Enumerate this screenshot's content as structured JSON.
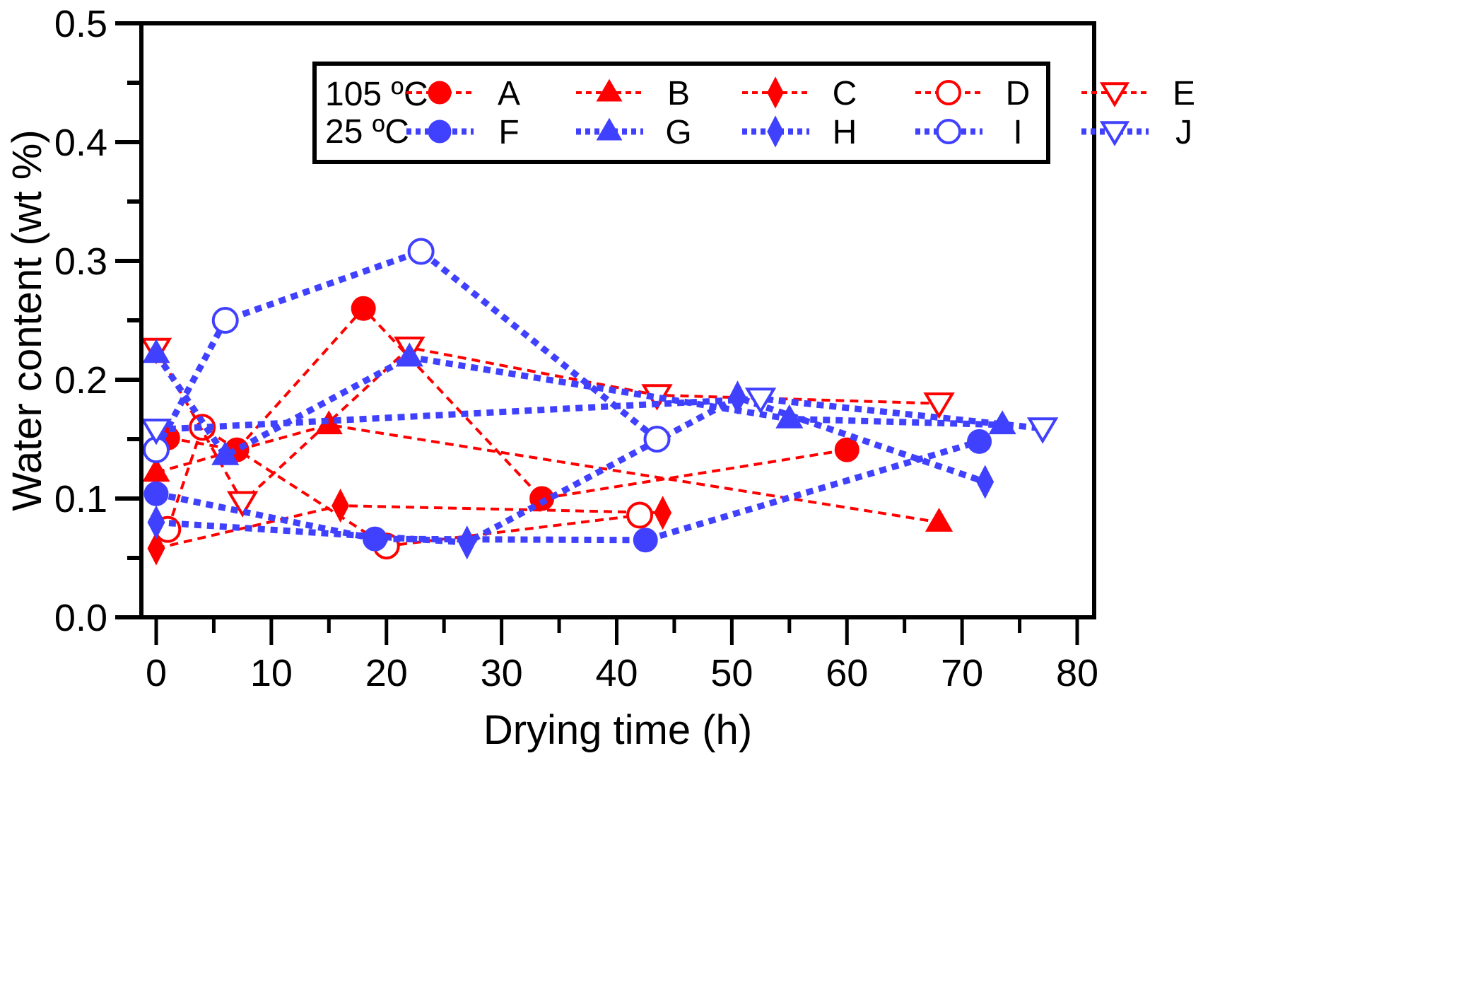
{
  "chart_data": {
    "type": "line",
    "title": "",
    "xlabel": "Drying time (h)",
    "ylabel": "Water content (wt %)",
    "xlim": [
      -2,
      80
    ],
    "ylim": [
      0.0,
      0.5
    ],
    "xticks": [
      "0",
      "10",
      "20",
      "30",
      "40",
      "50",
      "60",
      "70",
      "80"
    ],
    "xtick_values": [
      0,
      10,
      20,
      30,
      40,
      50,
      60,
      70,
      80
    ],
    "yticks": [
      "0.0",
      "0.1",
      "0.2",
      "0.3",
      "0.4",
      "0.5"
    ],
    "ytick_values": [
      0.0,
      0.1,
      0.2,
      0.3,
      0.4,
      0.5
    ],
    "grid": false,
    "legend": {
      "placement": "top-right",
      "group_labels": [
        "105 ºC",
        "25 ºC"
      ]
    },
    "colors": {
      "hot": "#ff0000",
      "cold": "#4040ff"
    },
    "series": [
      {
        "name": "A",
        "group": "105 ºC",
        "color": "#ff0000",
        "marker": "circle",
        "filled": true,
        "x": [
          1,
          7,
          18,
          33.5,
          60
        ],
        "y": [
          0.151,
          0.141,
          0.26,
          0.1,
          0.141
        ]
      },
      {
        "name": "B",
        "group": "105 ºC",
        "color": "#ff0000",
        "marker": "triangle-up",
        "filled": true,
        "x": [
          0,
          15,
          68
        ],
        "y": [
          0.122,
          0.162,
          0.08
        ]
      },
      {
        "name": "C",
        "group": "105 ºC",
        "color": "#ff0000",
        "marker": "diamond",
        "filled": true,
        "x": [
          0,
          16,
          44
        ],
        "y": [
          0.058,
          0.094,
          0.088
        ]
      },
      {
        "name": "D",
        "group": "105 ºC",
        "color": "#ff0000",
        "marker": "circle",
        "filled": false,
        "x": [
          1,
          4,
          20,
          42
        ],
        "y": [
          0.074,
          0.16,
          0.06,
          0.086
        ]
      },
      {
        "name": "E",
        "group": "105 ºC",
        "color": "#ff0000",
        "marker": "triangle-down",
        "filled": false,
        "x": [
          0,
          7.5,
          22,
          43.5,
          68
        ],
        "y": [
          0.226,
          0.097,
          0.227,
          0.187,
          0.18
        ]
      },
      {
        "name": "F",
        "group": "25 ºC",
        "color": "#4040ff",
        "marker": "circle",
        "filled": true,
        "x": [
          0,
          19,
          42.5,
          71.5
        ],
        "y": [
          0.104,
          0.066,
          0.065,
          0.148
        ]
      },
      {
        "name": "G",
        "group": "25 ºC",
        "color": "#4040ff",
        "marker": "triangle-up",
        "filled": true,
        "x": [
          0,
          6,
          22,
          55,
          73.5
        ],
        "y": [
          0.222,
          0.136,
          0.219,
          0.167,
          0.162
        ]
      },
      {
        "name": "H",
        "group": "25 ºC",
        "color": "#4040ff",
        "marker": "diamond",
        "filled": true,
        "x": [
          0,
          27,
          50.5,
          72
        ],
        "y": [
          0.08,
          0.063,
          0.185,
          0.114
        ]
      },
      {
        "name": "I",
        "group": "25 ºC",
        "color": "#4040ff",
        "marker": "circle",
        "filled": false,
        "x": [
          0,
          6,
          23,
          43.5
        ],
        "y": [
          0.141,
          0.25,
          0.308,
          0.15
        ]
      },
      {
        "name": "J",
        "group": "25 ºC",
        "color": "#4040ff",
        "marker": "triangle-down",
        "filled": false,
        "x": [
          0,
          52.5,
          77
        ],
        "y": [
          0.158,
          0.184,
          0.159
        ]
      }
    ]
  }
}
